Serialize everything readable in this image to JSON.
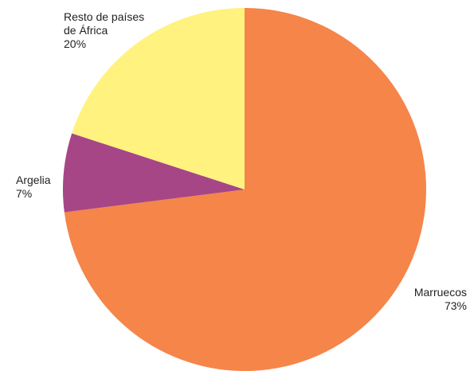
{
  "chart_data": {
    "type": "pie",
    "categories": [
      "Marruecos",
      "Argelia",
      "Resto de países de África"
    ],
    "values": [
      73,
      7,
      20
    ],
    "value_labels": [
      "73%",
      "7%",
      "20%"
    ],
    "colors": [
      "#f58549",
      "#a64686",
      "#fff27e"
    ]
  }
}
